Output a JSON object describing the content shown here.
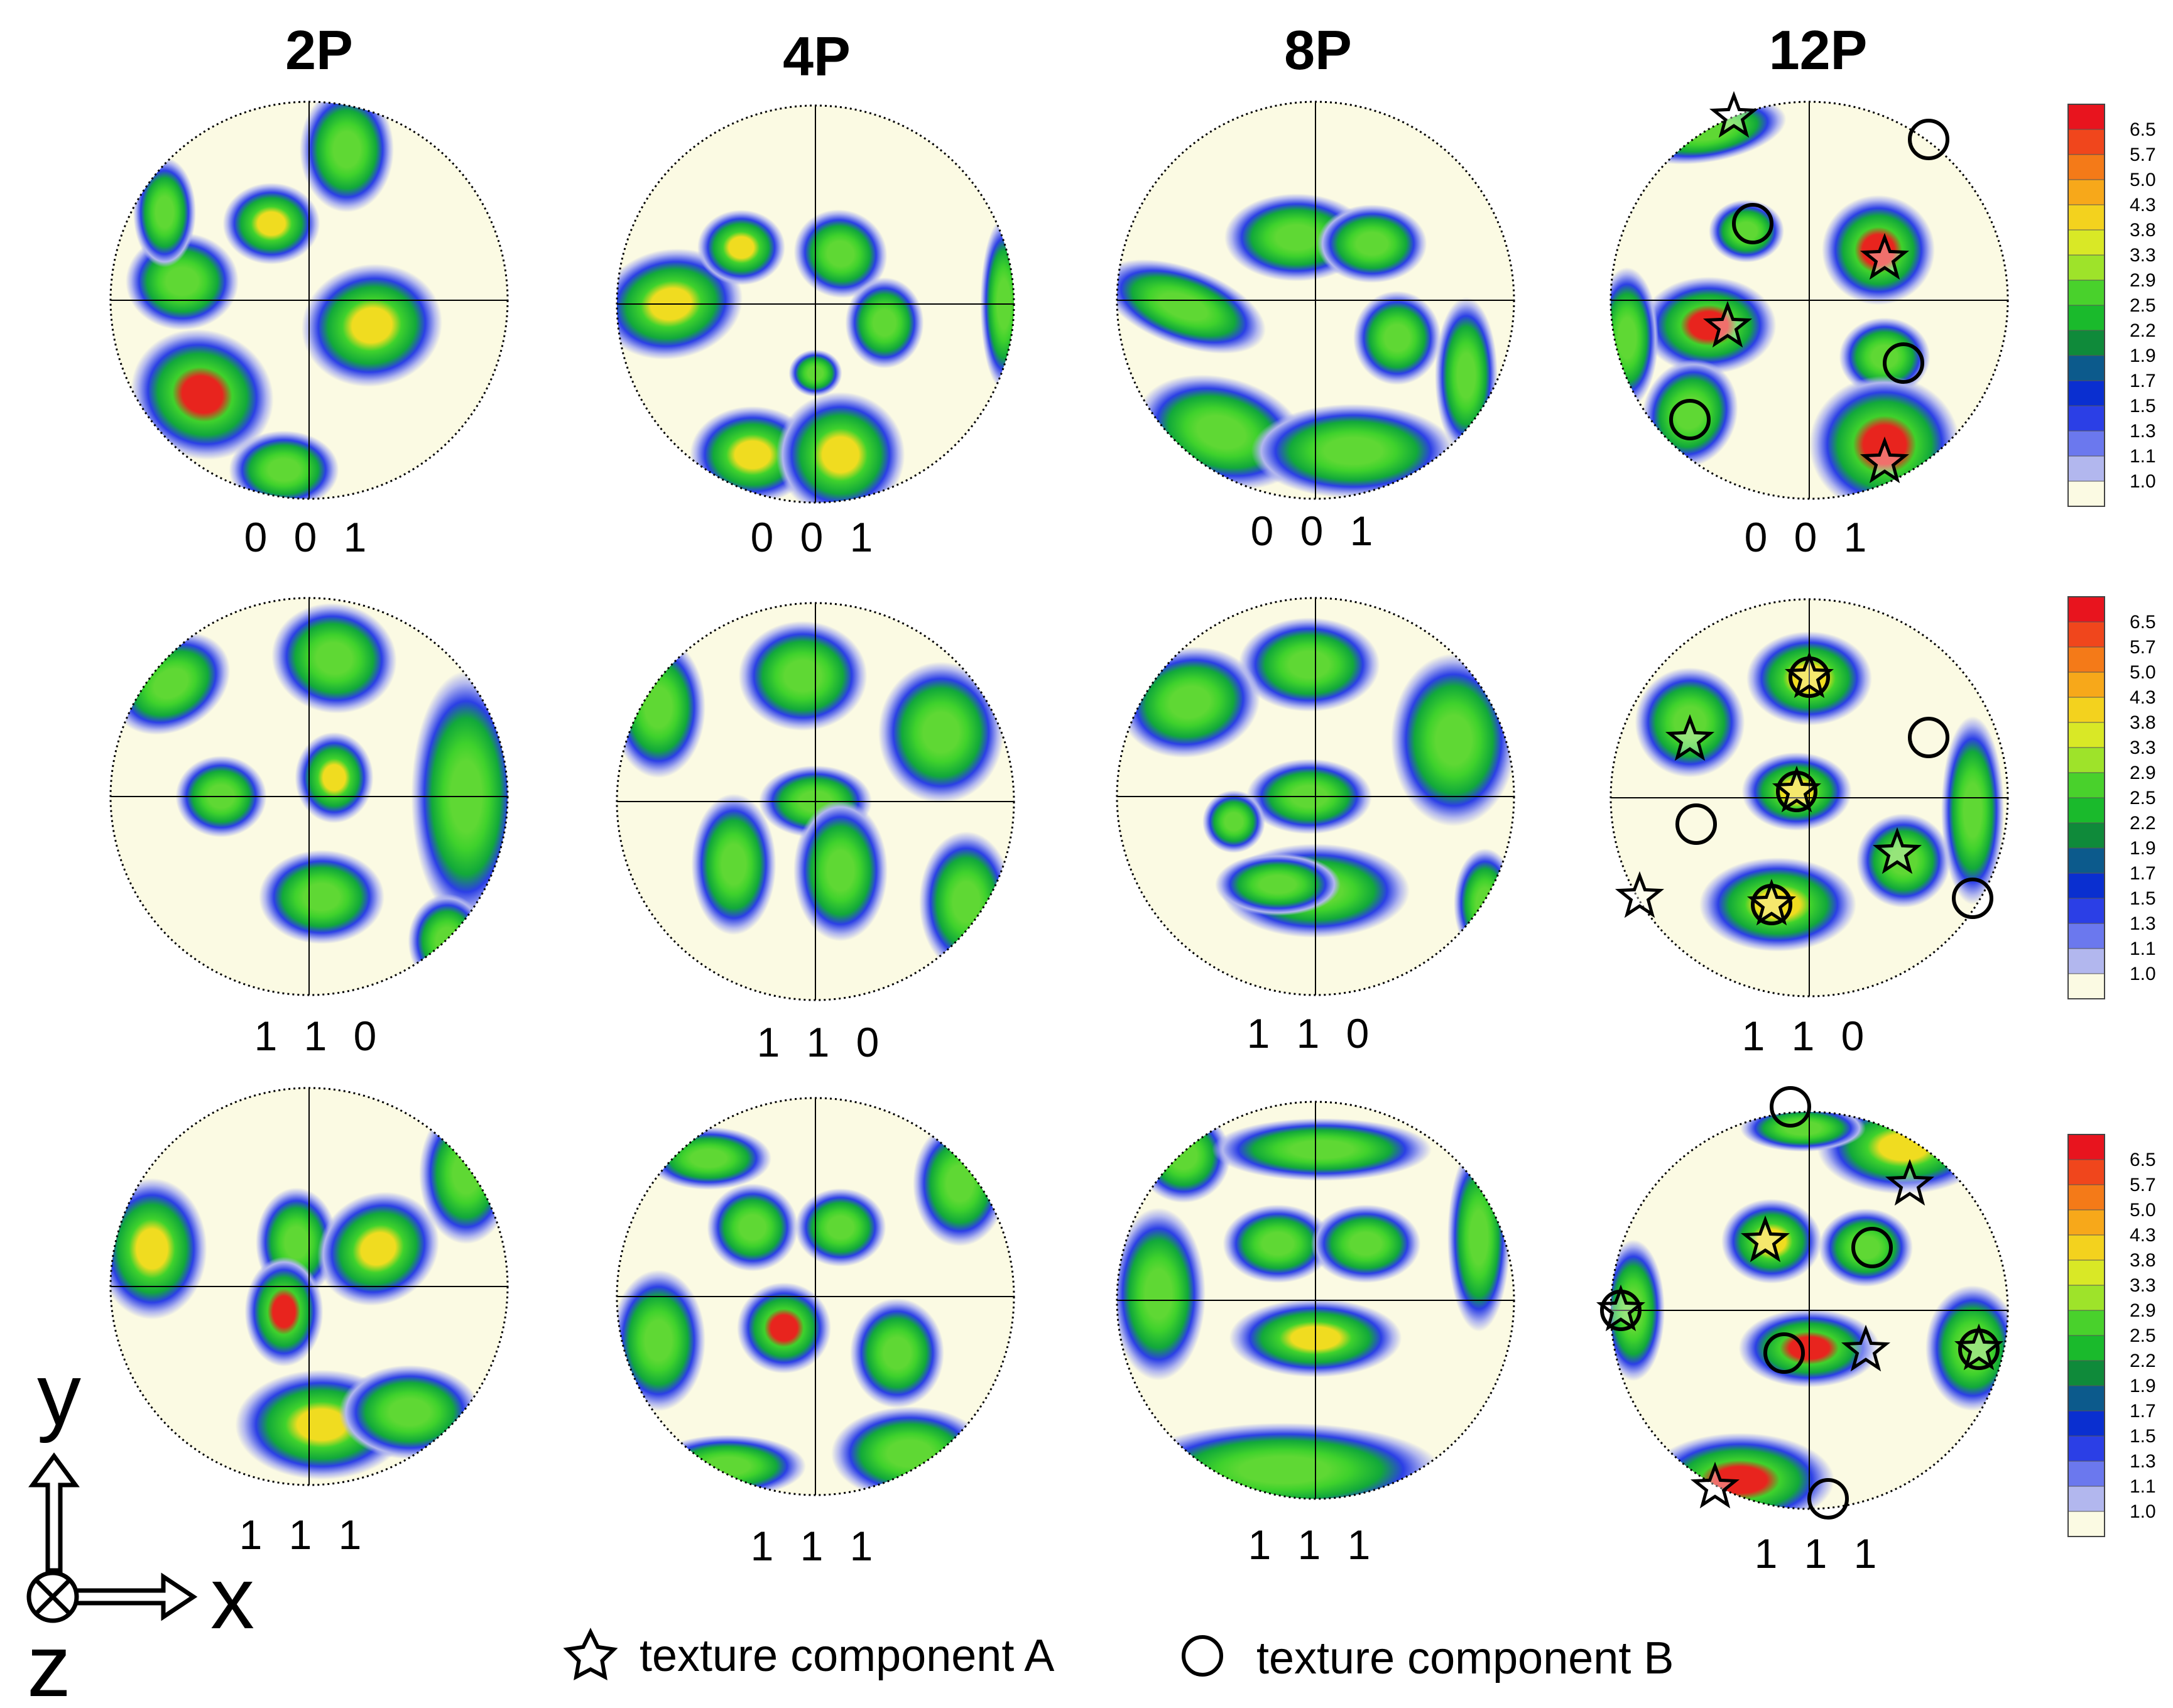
{
  "columns": [
    "2P",
    "4P",
    "8P",
    "12P"
  ],
  "rows": [
    "0 0 1",
    "1 1 0",
    "1 1 1"
  ],
  "colorbar_ticks": [
    "6.5",
    "5.7",
    "5.0",
    "4.3",
    "3.8",
    "3.3",
    "2.9",
    "2.5",
    "2.2",
    "1.9",
    "1.7",
    "1.5",
    "1.3",
    "1.1",
    "1.0"
  ],
  "colorbar_colors": [
    "#e8141e",
    "#f0461c",
    "#f47a18",
    "#f7a81a",
    "#f3d21e",
    "#d9e826",
    "#9ee32a",
    "#49d12c",
    "#1aba2c",
    "#0f8a3a",
    "#0c5a8c",
    "#0a2fd0",
    "#2b3fe6",
    "#6b78ee",
    "#b2b7ee",
    "#fbfae3"
  ],
  "axes_labels": {
    "y": "y",
    "x": "x",
    "z": "z"
  },
  "legend": {
    "a_label": "texture component A",
    "b_label": "texture component B",
    "a_icon": "star-icon",
    "b_icon": "circle-icon"
  },
  "colors": {
    "background_disc": "#fbfae3",
    "low": "#b2b7ee",
    "blue": "#2b3fe6",
    "green": "#1aba2c",
    "yellow": "#f3d21e",
    "red": "#e8141e"
  }
}
